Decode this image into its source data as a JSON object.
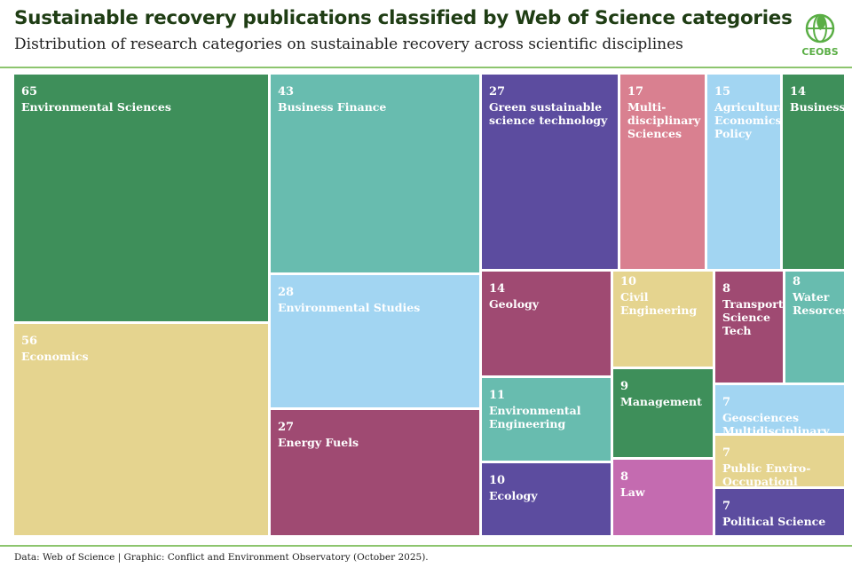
{
  "header": {
    "title": "Sustainable recovery publications classified by Web of Science categories",
    "subtitle": "Distribution of research categories on sustainable recovery across scientific disciplines"
  },
  "logo": {
    "text": "CEOBS",
    "icon": "globe-leaf-icon",
    "color": "#5aae45"
  },
  "footer": {
    "source": "Data: Web of Science | Graphic: Conflict and Environment Observatory (October 2025)."
  },
  "chart_data": {
    "type": "treemap",
    "title": "Sustainable recovery publications classified by Web of Science categories",
    "subtitle": "Distribution of research categories on sustainable recovery across scientific disciplines",
    "items": [
      {
        "category": "Environmental Sciences",
        "value": 65,
        "color": "#3e8f5a"
      },
      {
        "category": "Economics",
        "value": 56,
        "color": "#e5d48f"
      },
      {
        "category": "Business Finance",
        "value": 43,
        "color": "#68bcaf"
      },
      {
        "category": "Environmental Studies",
        "value": 28,
        "color": "#a2d5f2"
      },
      {
        "category": "Energy Fuels",
        "value": 27,
        "color": "#9f4a72"
      },
      {
        "category": "Green sustainable science technology",
        "value": 27,
        "color": "#5c4c9f"
      },
      {
        "category": "Multi-disciplinary Sciences",
        "value": 17,
        "color": "#d98090"
      },
      {
        "category": "Agricultural Economics Policy",
        "value": 15,
        "color": "#a2d5f2"
      },
      {
        "category": "Business",
        "value": 14,
        "color": "#3e8f5a"
      },
      {
        "category": "Geology",
        "value": 14,
        "color": "#9f4a72"
      },
      {
        "category": "Environmental Engineering",
        "value": 11,
        "color": "#68bcaf"
      },
      {
        "category": "Ecology",
        "value": 10,
        "color": "#5c4c9f"
      },
      {
        "category": "Civil Engineering",
        "value": 10,
        "color": "#e5d48f"
      },
      {
        "category": "Management",
        "value": 9,
        "color": "#3e8f5a"
      },
      {
        "category": "Law",
        "value": 8,
        "color": "#c46bb0"
      },
      {
        "category": "Transport Science Tech",
        "value": 8,
        "color": "#9f4a72"
      },
      {
        "category": "Water Resorces",
        "value": 8,
        "color": "#68bcaf"
      },
      {
        "category": "Geosciences Multidisciplinary",
        "value": 7,
        "color": "#a2d5f2"
      },
      {
        "category": "Public Enviro-Occupationl Health",
        "value": 7,
        "color": "#e5d48f"
      },
      {
        "category": "Political Science",
        "value": 7,
        "color": "#5c4c9f"
      }
    ]
  }
}
